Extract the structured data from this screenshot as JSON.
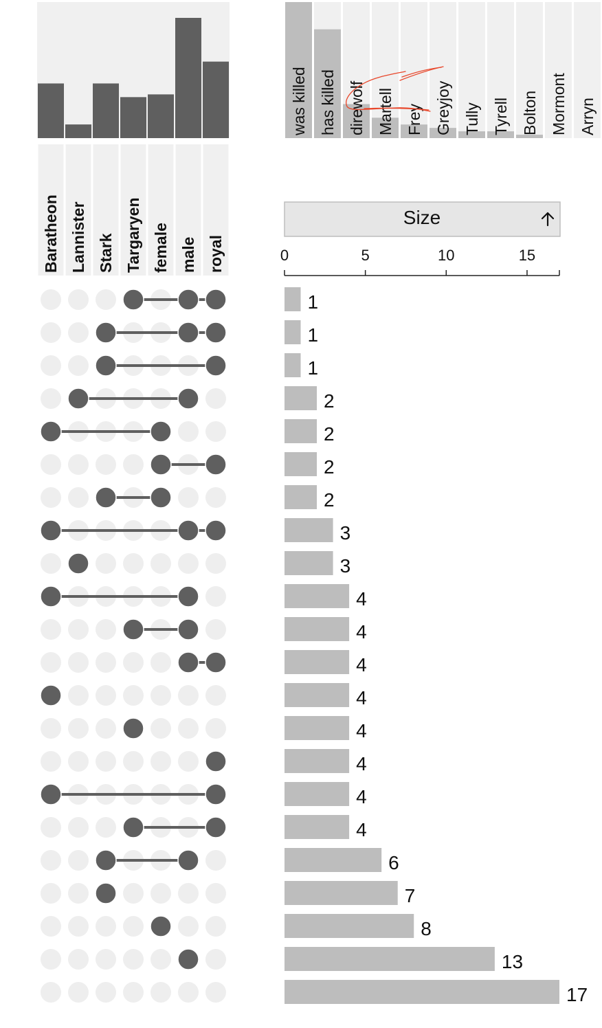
{
  "chart_data": {
    "type": "upset",
    "sets": [
      "Baratheon",
      "Lannister",
      "Stark",
      "Targaryen",
      "female",
      "male",
      "royal"
    ],
    "set_sizes": [
      20,
      5,
      20,
      15,
      16,
      44,
      28
    ],
    "attributes": {
      "categories": [
        "was killed",
        "has killed",
        "direwolf",
        "Martell",
        "Frey",
        "Greyjoy",
        "Tully",
        "Tyrell",
        "Bolton",
        "Mormont",
        "Arryn"
      ],
      "values": [
        40,
        32,
        10,
        6,
        4,
        3,
        2,
        2,
        1,
        0,
        0
      ]
    },
    "sort": {
      "label": "Size",
      "icon": "arrow-up-icon"
    },
    "size_axis": {
      "ticks": [
        "0",
        "5",
        "10",
        "15"
      ],
      "domain": [
        0,
        17
      ]
    },
    "intersections": [
      {
        "members": [
          3,
          5,
          6
        ],
        "size": 1
      },
      {
        "members": [
          2,
          5,
          6
        ],
        "size": 1
      },
      {
        "members": [
          2,
          6
        ],
        "size": 1
      },
      {
        "members": [
          1,
          5
        ],
        "size": 2
      },
      {
        "members": [
          0,
          4
        ],
        "size": 2
      },
      {
        "members": [
          4,
          6
        ],
        "size": 2
      },
      {
        "members": [
          2,
          4
        ],
        "size": 2
      },
      {
        "members": [
          0,
          5,
          6
        ],
        "size": 3
      },
      {
        "members": [
          1
        ],
        "size": 3
      },
      {
        "members": [
          0,
          5
        ],
        "size": 4
      },
      {
        "members": [
          3,
          5
        ],
        "size": 4
      },
      {
        "members": [
          5,
          6
        ],
        "size": 4
      },
      {
        "members": [
          0
        ],
        "size": 4
      },
      {
        "members": [
          3
        ],
        "size": 4
      },
      {
        "members": [
          6
        ],
        "size": 4
      },
      {
        "members": [
          0,
          6
        ],
        "size": 4
      },
      {
        "members": [
          3,
          6
        ],
        "size": 4
      },
      {
        "members": [
          2,
          5
        ],
        "size": 6
      },
      {
        "members": [
          2
        ],
        "size": 7
      },
      {
        "members": [
          4
        ],
        "size": 8
      },
      {
        "members": [
          5
        ],
        "size": 13
      },
      {
        "members": [],
        "size": 17
      }
    ],
    "colors": {
      "set_bar": "#5f5f5f",
      "dot_on": "#5f5f5f",
      "dot_off": "#eeeeee",
      "size_bar": "#bdbdbd",
      "attr_bar": "#bdbdbd",
      "column_bg": "#f0f0f0",
      "sort_button_bg": "#e6e6e6",
      "annotation": "#e8462a"
    }
  }
}
